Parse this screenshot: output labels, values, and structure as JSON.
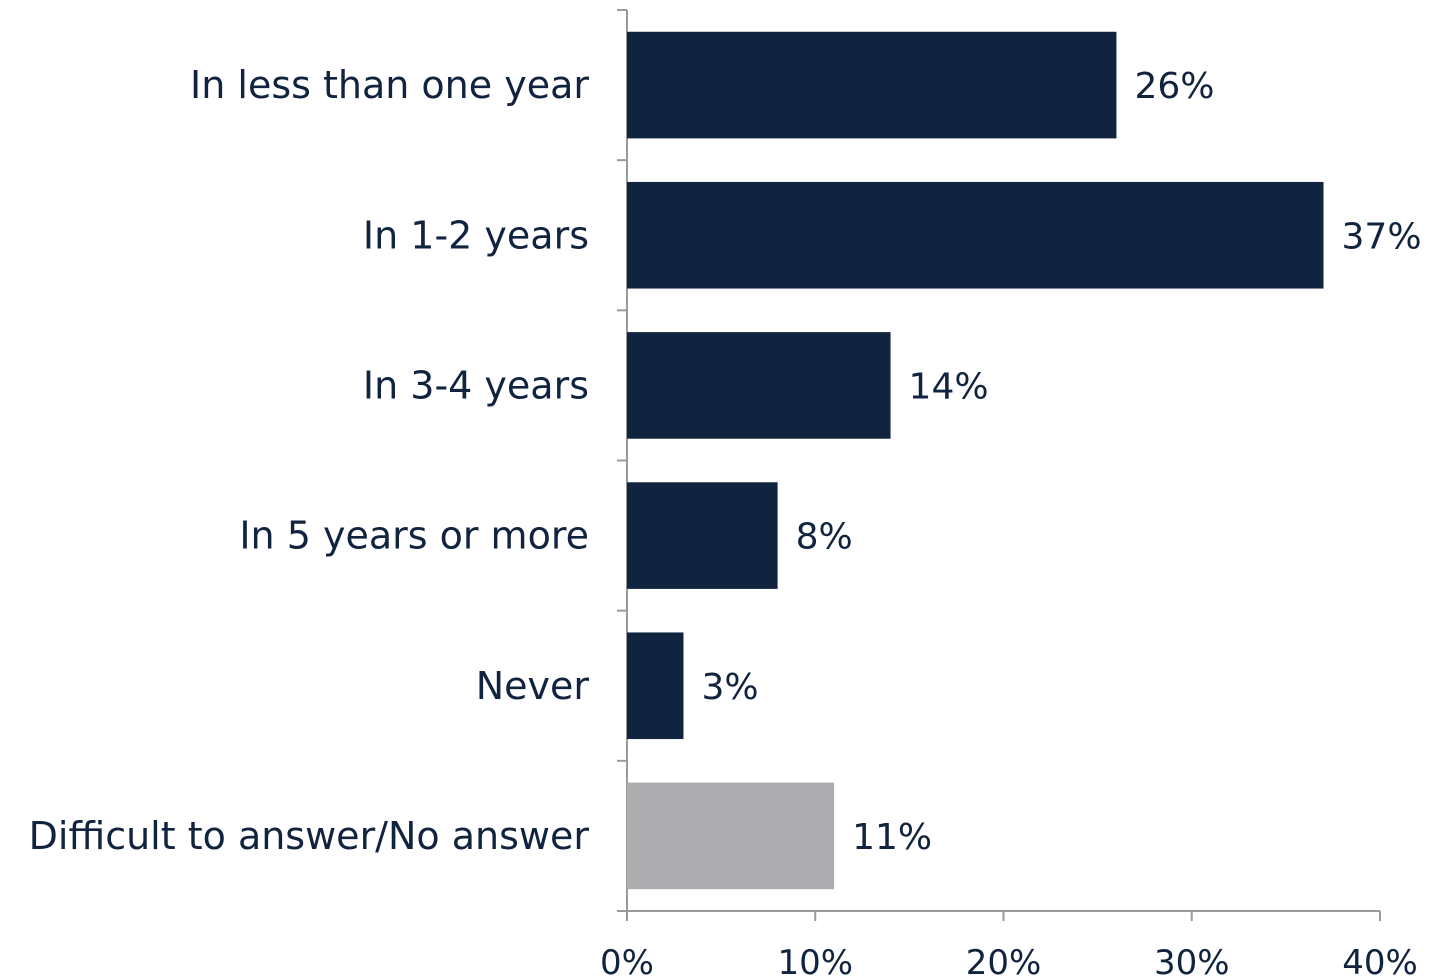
{
  "chart_data": {
    "type": "bar",
    "orientation": "horizontal",
    "categories": [
      "In less than one year",
      "In 1-2 years",
      "In 3-4 years",
      "In 5 years or more",
      "Never",
      "Difficult to answer/No answer"
    ],
    "values": [
      26,
      37,
      14,
      8,
      3,
      11
    ],
    "value_labels": [
      "26%",
      "37%",
      "14%",
      "8%",
      "3%",
      "11%"
    ],
    "bar_colors": [
      "#10233f",
      "#10233f",
      "#10233f",
      "#10233f",
      "#10233f",
      "#adadaf"
    ],
    "xlim": [
      0,
      40
    ],
    "x_ticks": [
      0,
      10,
      20,
      30,
      40
    ],
    "x_tick_labels": [
      "0%",
      "10%",
      "20%",
      "30%",
      "40%"
    ],
    "title": "",
    "xlabel": "",
    "ylabel": "",
    "grid": false,
    "legend": "none"
  },
  "colors": {
    "primary_bar": "#10233f",
    "secondary_bar": "#adadaf",
    "text": "#10233f",
    "axis": "#9a9a9a"
  }
}
